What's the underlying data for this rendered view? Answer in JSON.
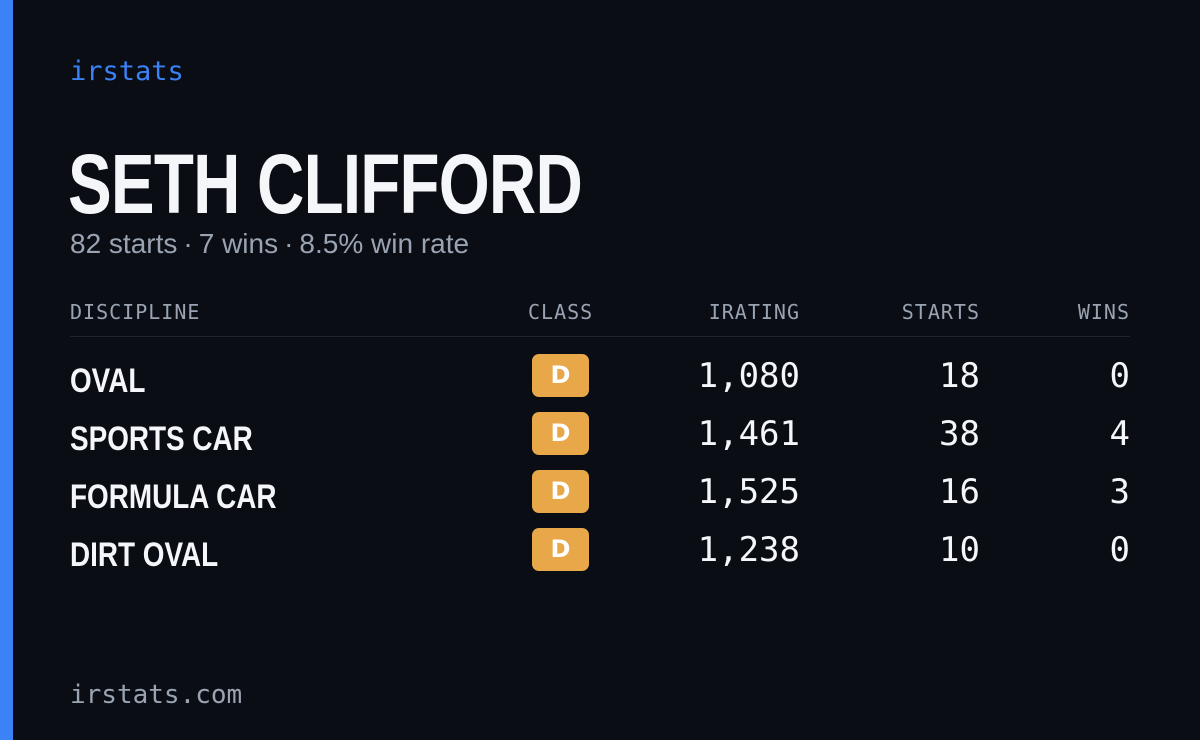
{
  "brand": "irstats",
  "driver": {
    "name": "SETH CLIFFORD",
    "starts_text": "82 starts",
    "wins_text": "7 wins",
    "win_rate_text": "8.5% win rate",
    "separator": "·"
  },
  "table": {
    "headers": {
      "discipline": "DISCIPLINE",
      "class": "CLASS",
      "irating": "IRATING",
      "starts": "STARTS",
      "wins": "WINS"
    },
    "rows": [
      {
        "discipline": "OVAL",
        "class": "D",
        "irating": "1,080",
        "starts": "18",
        "wins": "0"
      },
      {
        "discipline": "SPORTS CAR",
        "class": "D",
        "irating": "1,461",
        "starts": "38",
        "wins": "4"
      },
      {
        "discipline": "FORMULA CAR",
        "class": "D",
        "irating": "1,525",
        "starts": "16",
        "wins": "3"
      },
      {
        "discipline": "DIRT OVAL",
        "class": "D",
        "irating": "1,238",
        "starts": "10",
        "wins": "0"
      }
    ]
  },
  "footer": "irstats.com",
  "colors": {
    "background": "#0a0d14",
    "accent": "#3b82f6",
    "class_d_badge": "#e8a84a",
    "muted_text": "#9aa3b2"
  }
}
